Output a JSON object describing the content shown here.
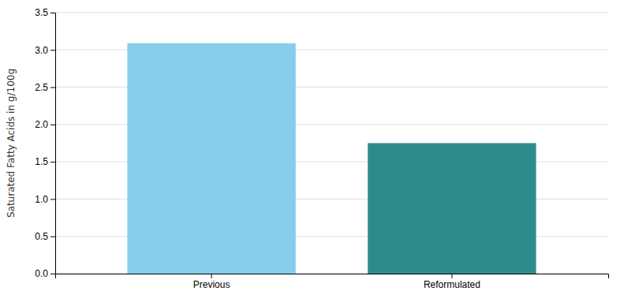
{
  "chart_data": {
    "type": "bar",
    "categories": [
      "Previous",
      "Reformulated"
    ],
    "values": [
      3.09,
      1.75
    ],
    "colors": [
      "#87CEEB",
      "#2E8B8B"
    ],
    "ylabel": "Saturated Fatty Acids in g/100g",
    "ylim": [
      0,
      3.5
    ],
    "yticks": [
      {
        "value": 0,
        "label": "0.0"
      },
      0.5,
      {
        "value": 1,
        "label": "1.0"
      },
      1.5,
      {
        "value": 2,
        "label": "2.0"
      },
      2.5,
      {
        "value": 3,
        "label": "3.0"
      },
      3.5
    ],
    "grid": true
  }
}
